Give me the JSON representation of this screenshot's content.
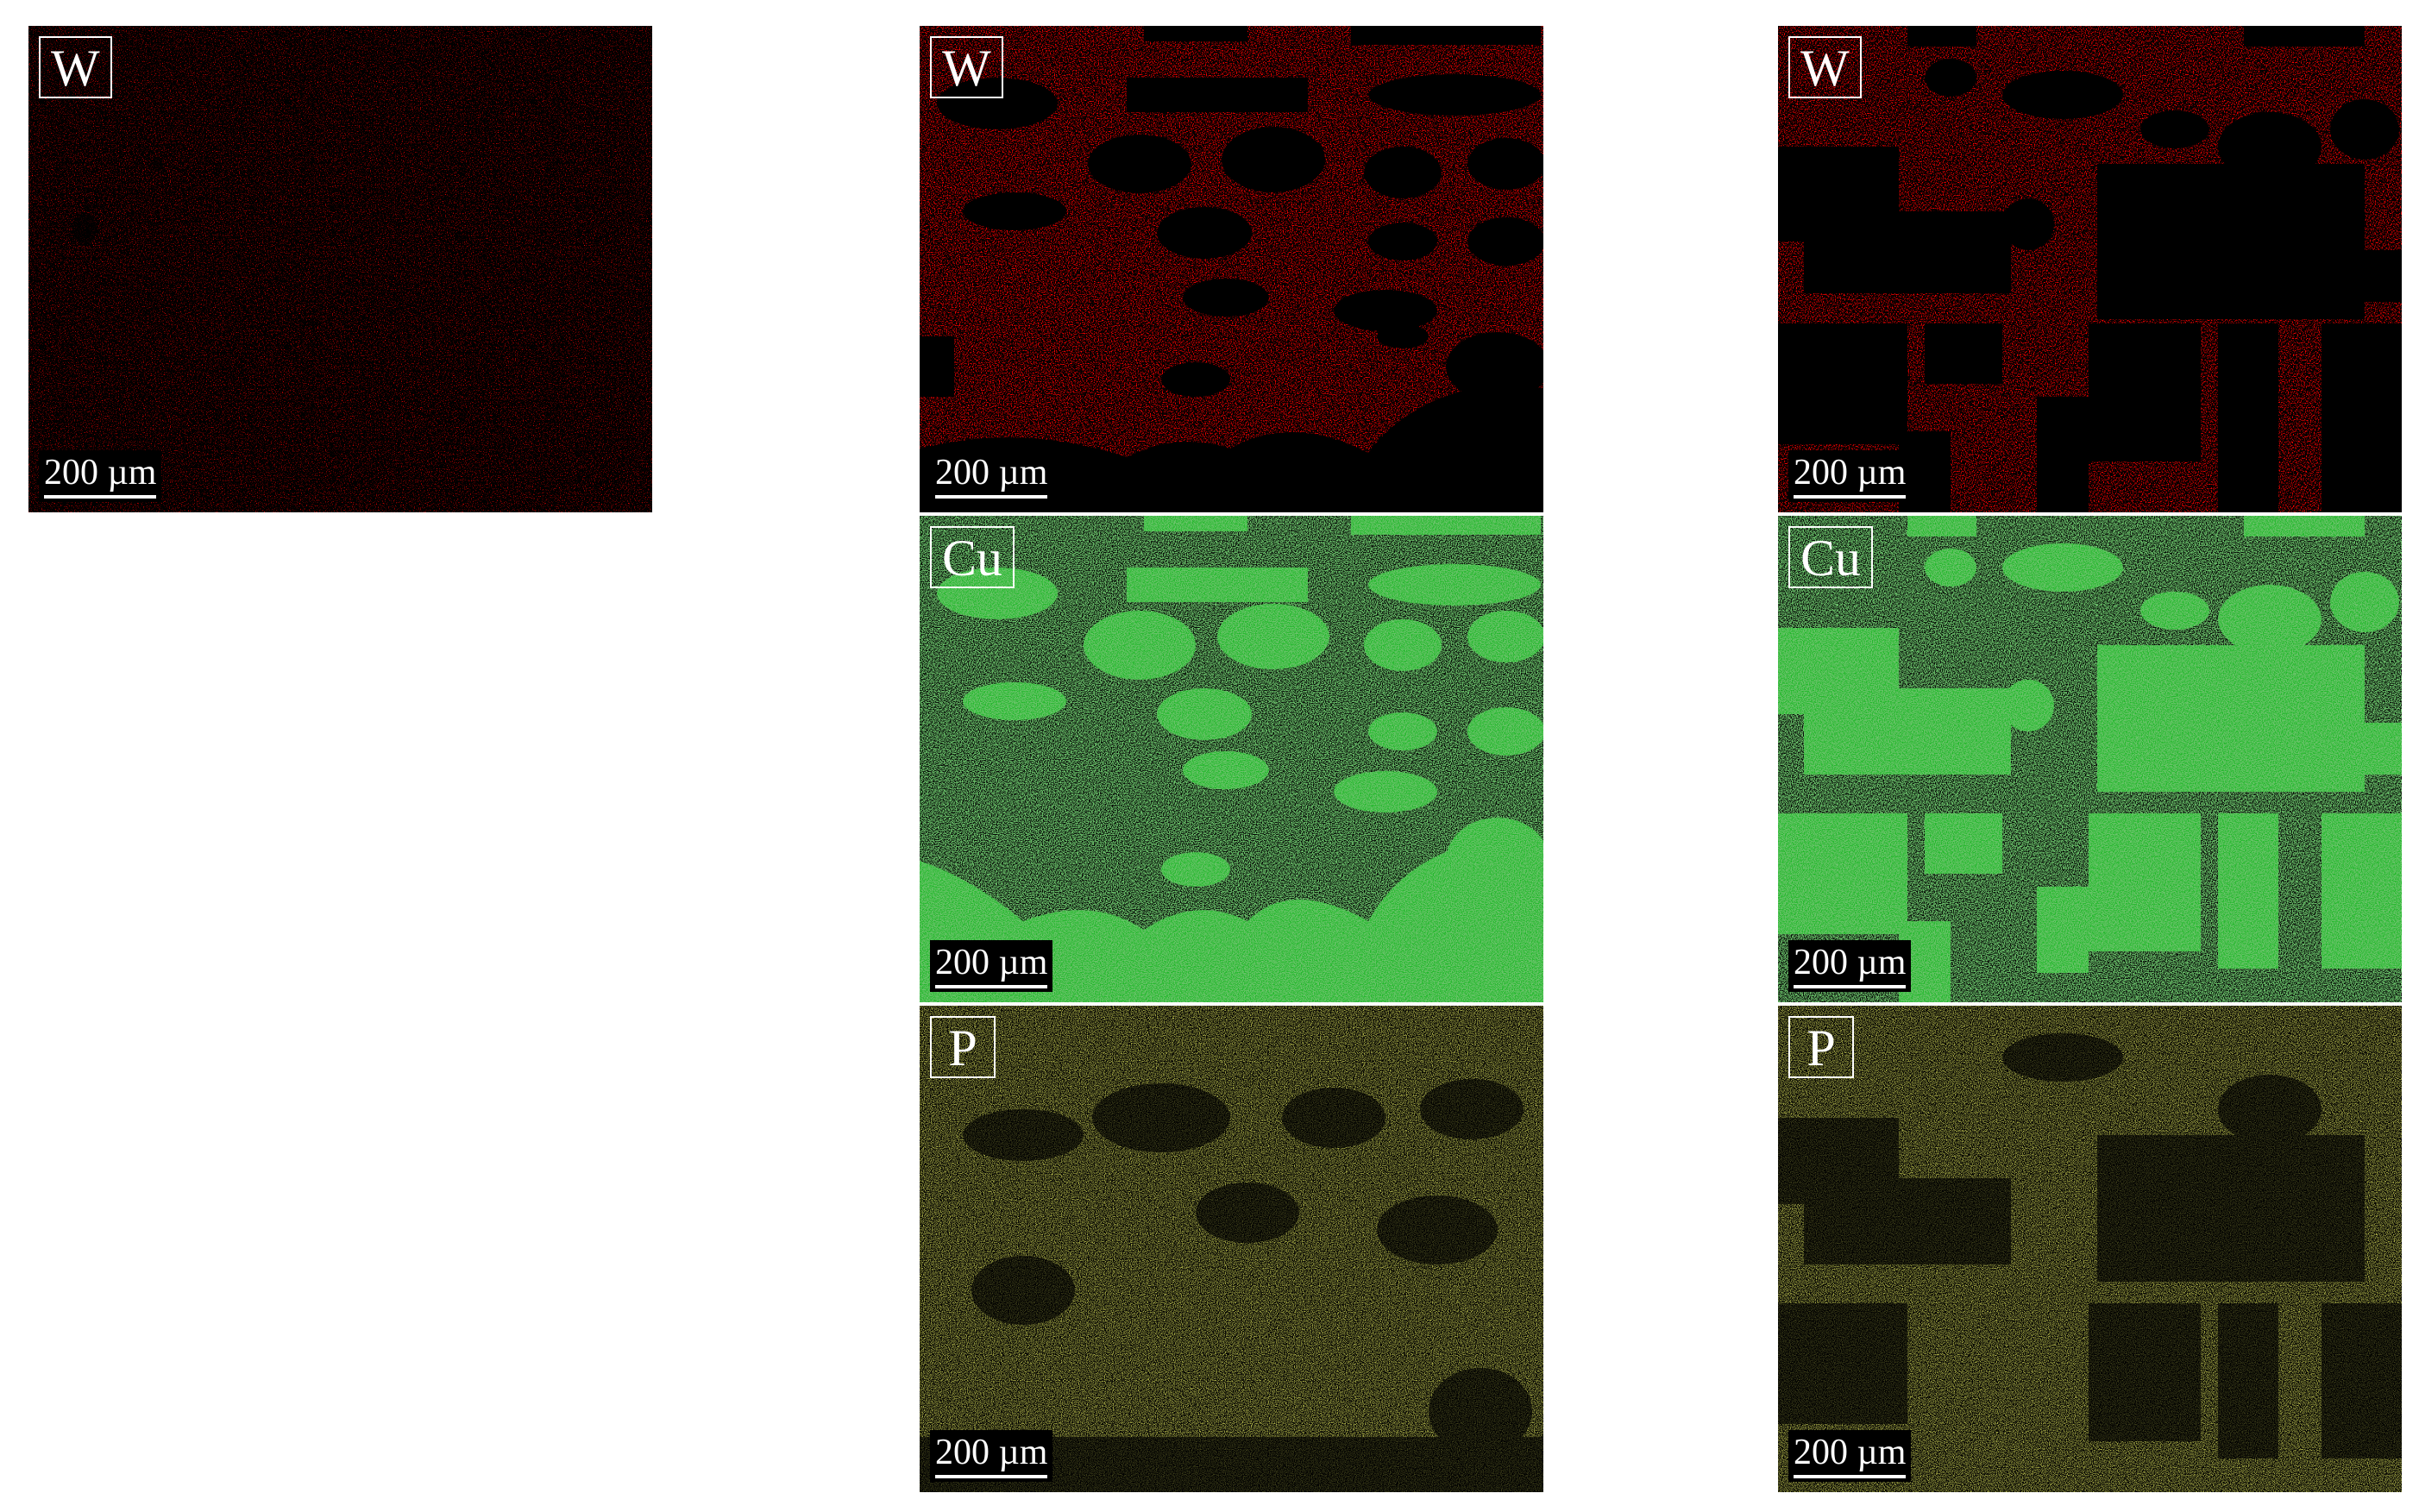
{
  "panels": [
    {
      "id": "a-w",
      "element": "W",
      "scale": "200 µm",
      "color": "#ff0000",
      "background": "#000000"
    },
    {
      "id": "b-w",
      "element": "W",
      "scale": "200 µm",
      "color": "#ff0000",
      "background": "#000000"
    },
    {
      "id": "c-w",
      "element": "W",
      "scale": "200 µm",
      "color": "#ff0000",
      "background": "#000000"
    },
    {
      "id": "b-cu",
      "element": "Cu",
      "scale": "200 µm",
      "color": "#22b82b",
      "background": "#000000"
    },
    {
      "id": "c-cu",
      "element": "Cu",
      "scale": "200 µm",
      "color": "#22b82b",
      "background": "#000000"
    },
    {
      "id": "b-p",
      "element": "P",
      "scale": "200 µm",
      "color": "#c8d21e",
      "background": "#000000"
    },
    {
      "id": "c-p",
      "element": "P",
      "scale": "200 µm",
      "color": "#c8d21e",
      "background": "#000000"
    }
  ]
}
